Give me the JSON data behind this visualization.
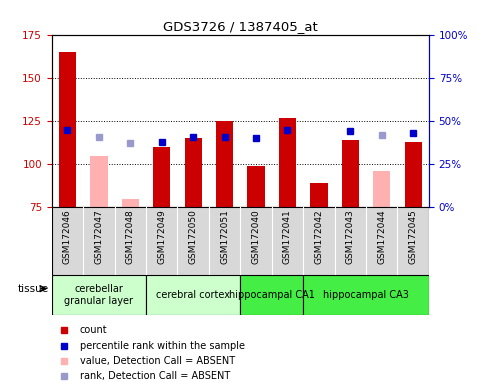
{
  "title": "GDS3726 / 1387405_at",
  "samples": [
    "GSM172046",
    "GSM172047",
    "GSM172048",
    "GSM172049",
    "GSM172050",
    "GSM172051",
    "GSM172040",
    "GSM172041",
    "GSM172042",
    "GSM172043",
    "GSM172044",
    "GSM172045"
  ],
  "count_values": [
    165,
    null,
    null,
    110,
    115,
    125,
    99,
    127,
    89,
    114,
    null,
    113
  ],
  "absent_values": [
    null,
    105,
    80,
    null,
    null,
    null,
    null,
    null,
    null,
    null,
    96,
    null
  ],
  "rank_values": [
    120,
    null,
    null,
    113,
    116,
    116,
    115,
    120,
    null,
    119,
    null,
    118
  ],
  "absent_rank_values": [
    null,
    116,
    112,
    null,
    null,
    null,
    null,
    null,
    null,
    null,
    117,
    null
  ],
  "ylim_left": [
    75,
    175
  ],
  "ylim_right": [
    0,
    100
  ],
  "yticks_left": [
    75,
    100,
    125,
    150,
    175
  ],
  "yticks_right": [
    0,
    25,
    50,
    75,
    100
  ],
  "ytick_labels_right": [
    "0%",
    "25%",
    "50%",
    "75%",
    "100%"
  ],
  "count_color": "#cc0000",
  "absent_color": "#ffb0b0",
  "rank_color": "#0000cc",
  "absent_rank_color": "#9999cc",
  "group_configs": [
    {
      "label": "cerebellar\ngranular layer",
      "start": 0,
      "end": 2,
      "color": "#ccffcc"
    },
    {
      "label": "cerebral cortex",
      "start": 3,
      "end": 5,
      "color": "#ccffcc"
    },
    {
      "label": "hippocampal CA1",
      "start": 6,
      "end": 7,
      "color": "#44ee44"
    },
    {
      "label": "hippocampal CA3",
      "start": 8,
      "end": 11,
      "color": "#44ee44"
    }
  ],
  "tissue_label": "tissue",
  "legend_items": [
    {
      "color": "#cc0000",
      "label": "count"
    },
    {
      "color": "#0000cc",
      "label": "percentile rank within the sample"
    },
    {
      "color": "#ffb0b0",
      "label": "value, Detection Call = ABSENT"
    },
    {
      "color": "#9999cc",
      "label": "rank, Detection Call = ABSENT"
    }
  ]
}
